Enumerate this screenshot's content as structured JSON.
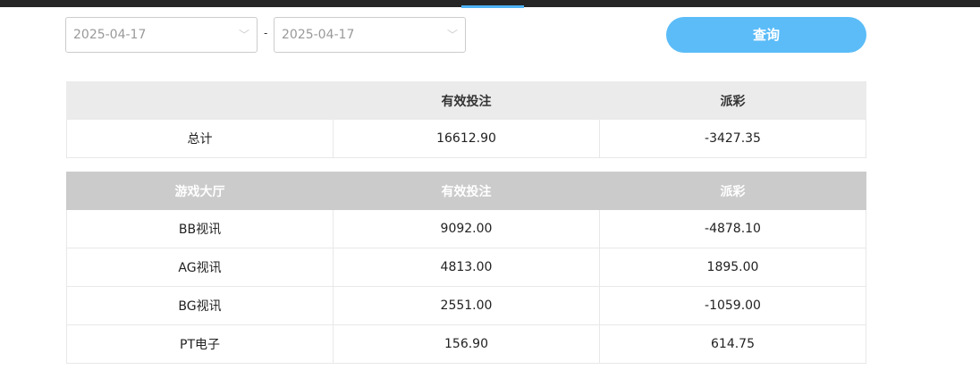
{
  "filters": {
    "start_date": "2025-04-17",
    "end_date": "2025-04-17",
    "separator": "-",
    "query_label": "查询"
  },
  "summary": {
    "headers": [
      "",
      "有效投注",
      "派彩"
    ],
    "row": [
      "总计",
      "16612.90",
      "-3427.35"
    ]
  },
  "halls": {
    "headers": [
      "游戏大厅",
      "有效投注",
      "派彩"
    ],
    "rows": [
      [
        "BB视讯",
        "9092.00",
        "-4878.10"
      ],
      [
        "AG视讯",
        "4813.00",
        "1895.00"
      ],
      [
        "BG视讯",
        "2551.00",
        "-1059.00"
      ],
      [
        "PT电子",
        "156.90",
        "614.75"
      ]
    ]
  },
  "colors": {
    "accent": "#5bbcf8",
    "topbar": "#262626"
  }
}
